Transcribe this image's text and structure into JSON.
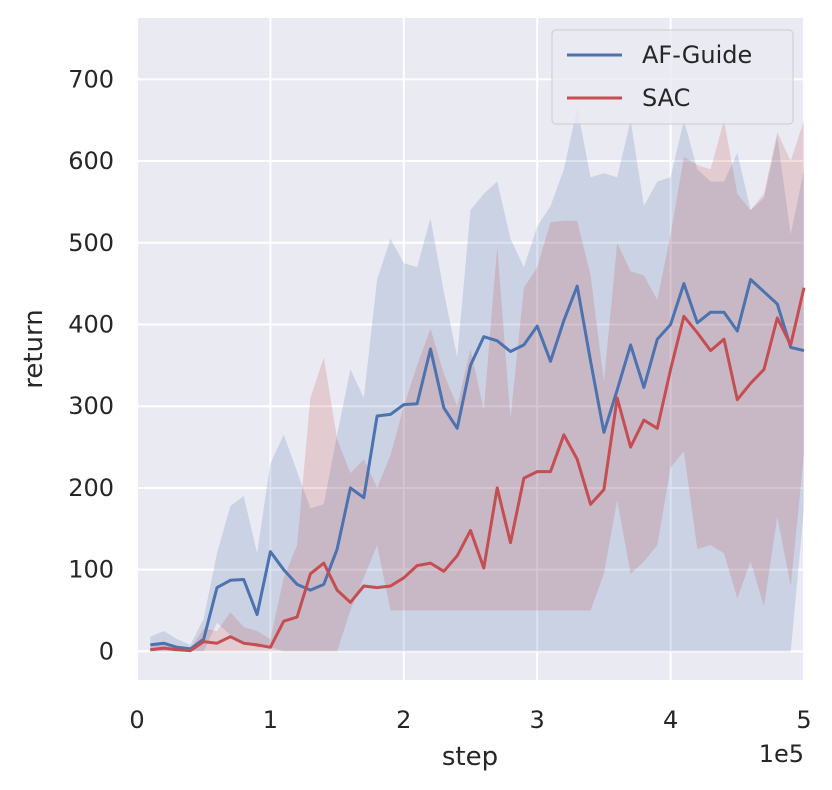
{
  "chart_data": {
    "type": "line",
    "title": "",
    "xlabel": "step",
    "ylabel": "return",
    "x_offset_text": "1e5",
    "xlim": [
      0,
      5
    ],
    "ylim": [
      -35,
      775
    ],
    "xticks": [
      0,
      1,
      2,
      3,
      4,
      5
    ],
    "yticks": [
      0,
      100,
      200,
      300,
      400,
      500,
      600,
      700
    ],
    "grid": true,
    "legend_position": "top-right",
    "x": [
      0.1,
      0.2,
      0.3,
      0.4,
      0.5,
      0.6,
      0.7,
      0.8,
      0.9,
      1.0,
      1.1,
      1.2,
      1.3,
      1.4,
      1.5,
      1.6,
      1.7,
      1.8,
      1.9,
      2.0,
      2.1,
      2.2,
      2.3,
      2.4,
      2.5,
      2.6,
      2.7,
      2.8,
      2.9,
      3.0,
      3.1,
      3.2,
      3.3,
      3.4,
      3.5,
      3.6,
      3.7,
      3.8,
      3.9,
      4.0,
      4.1,
      4.2,
      4.3,
      4.4,
      4.5,
      4.6,
      4.7,
      4.8,
      4.9,
      5.0
    ],
    "series": [
      {
        "name": "AF-Guide",
        "color": "#4c72b0",
        "mean": [
          8,
          10,
          5,
          3,
          15,
          78,
          87,
          88,
          45,
          122,
          100,
          82,
          75,
          82,
          125,
          200,
          188,
          288,
          290,
          302,
          303,
          370,
          298,
          273,
          350,
          385,
          380,
          367,
          375,
          398,
          355,
          405,
          447,
          355,
          268,
          320,
          375,
          323,
          382,
          400,
          450,
          402,
          415,
          415,
          392,
          455,
          440,
          425,
          372,
          368
        ],
        "upper": [
          18,
          25,
          15,
          8,
          40,
          120,
          178,
          190,
          120,
          230,
          265,
          220,
          175,
          180,
          265,
          345,
          310,
          455,
          505,
          475,
          470,
          530,
          440,
          360,
          540,
          560,
          575,
          505,
          470,
          520,
          545,
          590,
          665,
          580,
          585,
          580,
          650,
          545,
          575,
          580,
          650,
          590,
          575,
          575,
          610,
          540,
          555,
          630,
          510,
          590
        ],
        "lower": [
          0,
          0,
          0,
          0,
          0,
          35,
          20,
          10,
          5,
          5,
          0,
          0,
          0,
          0,
          0,
          0,
          0,
          0,
          0,
          0,
          0,
          0,
          0,
          0,
          0,
          0,
          0,
          0,
          0,
          0,
          0,
          0,
          0,
          0,
          0,
          0,
          0,
          0,
          0,
          0,
          0,
          0,
          0,
          0,
          0,
          0,
          0,
          0,
          0,
          175
        ]
      },
      {
        "name": "SAC",
        "color": "#c44e52",
        "mean": [
          2,
          4,
          2,
          1,
          12,
          10,
          18,
          10,
          8,
          5,
          37,
          42,
          95,
          108,
          75,
          60,
          80,
          78,
          80,
          90,
          105,
          108,
          98,
          117,
          148,
          102,
          200,
          133,
          212,
          220,
          220,
          265,
          235,
          180,
          198,
          310,
          250,
          283,
          273,
          345,
          410,
          390,
          368,
          382,
          308,
          328,
          345,
          408,
          375,
          445
        ],
        "upper": [
          5,
          10,
          6,
          3,
          28,
          25,
          48,
          30,
          25,
          15,
          90,
          130,
          310,
          360,
          260,
          218,
          235,
          200,
          240,
          300,
          350,
          395,
          340,
          300,
          370,
          295,
          495,
          285,
          445,
          470,
          525,
          527,
          527,
          460,
          330,
          500,
          465,
          460,
          430,
          510,
          605,
          595,
          590,
          650,
          560,
          540,
          560,
          635,
          600,
          650
        ],
        "lower": [
          0,
          0,
          0,
          0,
          0,
          0,
          0,
          0,
          0,
          0,
          0,
          0,
          0,
          0,
          0,
          50,
          90,
          130,
          50,
          50,
          50,
          50,
          50,
          50,
          50,
          50,
          50,
          50,
          50,
          50,
          50,
          50,
          50,
          50,
          95,
          185,
          95,
          110,
          130,
          225,
          245,
          125,
          130,
          120,
          65,
          110,
          55,
          165,
          80,
          240
        ]
      }
    ]
  }
}
